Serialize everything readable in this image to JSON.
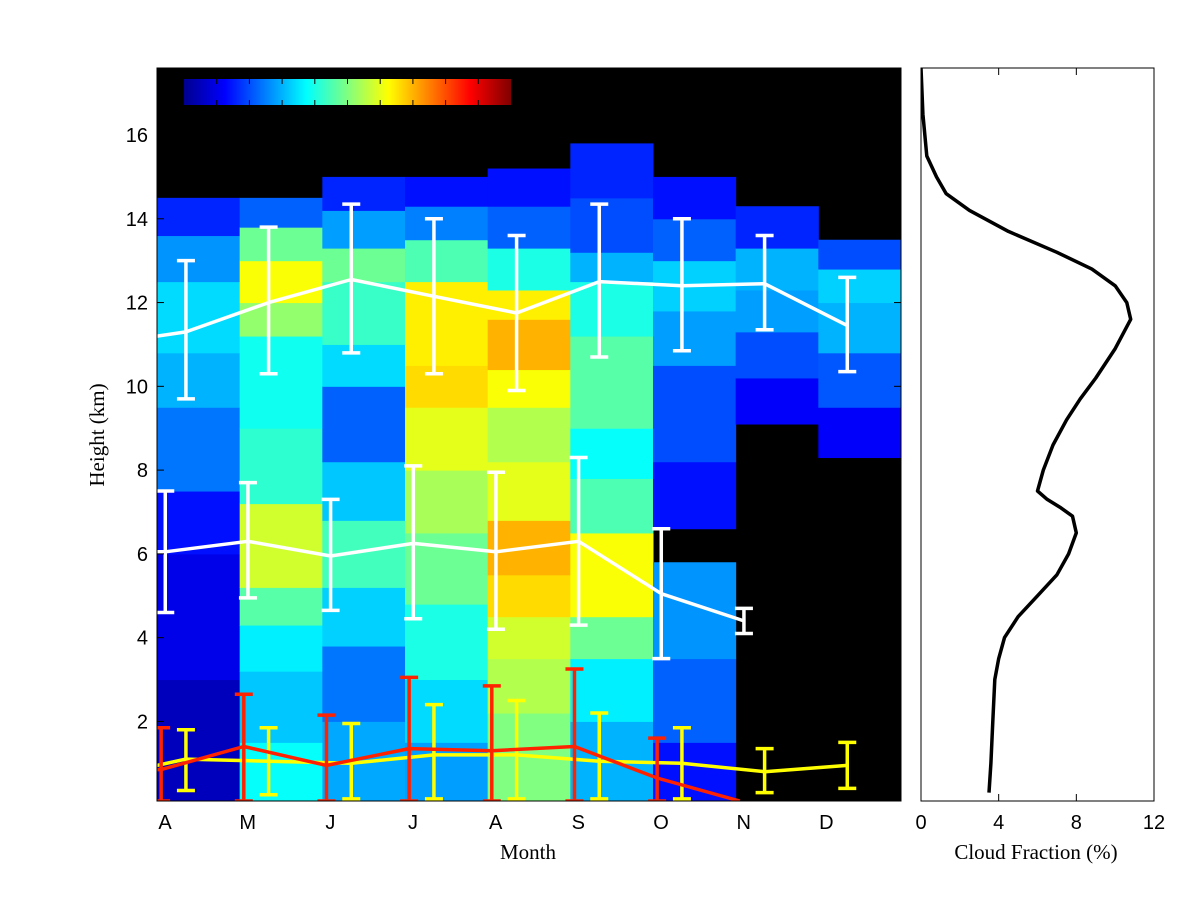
{
  "chart_data": [
    {
      "type": "heatmap",
      "title": "",
      "xlabel": "Month",
      "ylabel": "Height (km)",
      "categories": [
        "A",
        "M",
        "J",
        "J",
        "A",
        "S",
        "O",
        "N",
        "D"
      ],
      "ylim": [
        0.1,
        17.6
      ],
      "yticks": [
        2,
        4,
        6,
        8,
        10,
        12,
        14,
        16
      ],
      "colorbar": {
        "placement": "top-left inside plot",
        "colormap": "jet",
        "colors": [
          "#00008f",
          "#0000ff",
          "#0080ff",
          "#00ffff",
          "#80ff80",
          "#ffff00",
          "#ff8000",
          "#ff0000",
          "#800000"
        ]
      },
      "background_color": "#000000",
      "cloud_fraction_columns": [
        [
          [
            0.1,
            3.0,
            0.05
          ],
          [
            3.0,
            6.0,
            0.1
          ],
          [
            6.0,
            7.5,
            0.14
          ],
          [
            7.5,
            9.5,
            0.24
          ],
          [
            9.5,
            10.8,
            0.3
          ],
          [
            10.8,
            12.5,
            0.34
          ],
          [
            12.5,
            13.6,
            0.27
          ],
          [
            13.6,
            14.5,
            0.16
          ]
        ],
        [
          [
            0.1,
            1.5,
            0.38
          ],
          [
            1.5,
            3.2,
            0.32
          ],
          [
            3.2,
            4.3,
            0.36
          ],
          [
            4.3,
            5.2,
            0.46
          ],
          [
            5.2,
            7.2,
            0.58
          ],
          [
            7.2,
            9.0,
            0.42
          ],
          [
            9.0,
            11.2,
            0.39
          ],
          [
            11.2,
            12.0,
            0.52
          ],
          [
            12.0,
            13.0,
            0.62
          ],
          [
            13.0,
            13.8,
            0.48
          ],
          [
            13.8,
            14.5,
            0.22
          ]
        ],
        [
          [
            0.1,
            2.0,
            0.29
          ],
          [
            2.0,
            3.8,
            0.24
          ],
          [
            3.8,
            5.2,
            0.33
          ],
          [
            5.2,
            6.8,
            0.44
          ],
          [
            6.8,
            8.2,
            0.32
          ],
          [
            8.2,
            10.0,
            0.22
          ],
          [
            10.0,
            11.0,
            0.34
          ],
          [
            11.0,
            12.5,
            0.43
          ],
          [
            12.5,
            13.3,
            0.48
          ],
          [
            13.3,
            14.2,
            0.28
          ],
          [
            14.2,
            15.0,
            0.16
          ]
        ],
        [
          [
            0.1,
            1.5,
            0.28
          ],
          [
            1.5,
            3.0,
            0.34
          ],
          [
            3.0,
            4.8,
            0.4
          ],
          [
            4.8,
            6.5,
            0.48
          ],
          [
            6.5,
            8.0,
            0.54
          ],
          [
            8.0,
            9.5,
            0.6
          ],
          [
            9.5,
            10.5,
            0.66
          ],
          [
            10.5,
            12.5,
            0.64
          ],
          [
            12.5,
            13.5,
            0.45
          ],
          [
            13.5,
            14.3,
            0.25
          ],
          [
            14.3,
            15.0,
            0.14
          ]
        ],
        [
          [
            0.1,
            2.2,
            0.5
          ],
          [
            2.2,
            3.5,
            0.55
          ],
          [
            3.5,
            4.5,
            0.58
          ],
          [
            4.5,
            5.5,
            0.66
          ],
          [
            5.5,
            6.8,
            0.7
          ],
          [
            6.8,
            8.2,
            0.6
          ],
          [
            8.2,
            9.5,
            0.55
          ],
          [
            9.5,
            10.4,
            0.62
          ],
          [
            10.4,
            11.6,
            0.7
          ],
          [
            11.6,
            12.3,
            0.64
          ],
          [
            12.3,
            13.3,
            0.4
          ],
          [
            13.3,
            14.3,
            0.22
          ],
          [
            14.3,
            15.2,
            0.14
          ]
        ],
        [
          [
            0.1,
            2.0,
            0.3
          ],
          [
            2.0,
            3.5,
            0.36
          ],
          [
            3.5,
            4.5,
            0.48
          ],
          [
            4.5,
            6.5,
            0.62
          ],
          [
            6.5,
            7.8,
            0.45
          ],
          [
            7.8,
            9.0,
            0.38
          ],
          [
            9.0,
            11.2,
            0.46
          ],
          [
            11.2,
            12.5,
            0.4
          ],
          [
            12.5,
            13.2,
            0.3
          ],
          [
            13.2,
            14.5,
            0.2
          ],
          [
            14.5,
            15.8,
            0.16
          ]
        ],
        [
          [
            0.1,
            1.5,
            0.14
          ],
          [
            1.5,
            3.5,
            0.22
          ],
          [
            3.5,
            5.8,
            0.27
          ],
          [
            6.6,
            8.2,
            0.14
          ],
          [
            8.2,
            10.5,
            0.2
          ],
          [
            10.5,
            11.8,
            0.28
          ],
          [
            11.8,
            13.0,
            0.33
          ],
          [
            13.0,
            14.0,
            0.22
          ],
          [
            14.0,
            15.0,
            0.14
          ]
        ],
        [
          [
            9.1,
            10.2,
            0.12
          ],
          [
            10.2,
            11.3,
            0.2
          ],
          [
            11.3,
            12.3,
            0.28
          ],
          [
            12.3,
            13.3,
            0.3
          ],
          [
            13.3,
            14.3,
            0.16
          ]
        ],
        [
          [
            8.3,
            9.5,
            0.12
          ],
          [
            9.5,
            10.8,
            0.21
          ],
          [
            10.8,
            12.0,
            0.3
          ],
          [
            12.0,
            12.8,
            0.33
          ],
          [
            12.8,
            13.5,
            0.2
          ]
        ]
      ],
      "series": [
        {
          "color": "#ffffff",
          "x": [
            0,
            0.35,
            1.35,
            2.35,
            3.35,
            4.35,
            5.35,
            6.35,
            7.35,
            8.35
          ],
          "values": [
            11.2,
            11.3,
            12.0,
            12.55,
            12.15,
            11.75,
            12.5,
            12.4,
            12.45,
            11.45
          ],
          "err_low": [
            null,
            9.7,
            10.3,
            10.8,
            10.3,
            9.9,
            10.7,
            10.85,
            11.35,
            10.35
          ],
          "err_high": [
            null,
            13.0,
            13.8,
            14.35,
            14.0,
            13.6,
            14.35,
            14.0,
            13.6,
            12.6
          ]
        },
        {
          "color": "#ffffff",
          "x": [
            0,
            0.1,
            1.1,
            2.1,
            3.1,
            4.1,
            5.1,
            6.1,
            7.1
          ],
          "values": [
            6.05,
            6.05,
            6.3,
            5.95,
            6.25,
            6.05,
            6.3,
            5.05,
            4.4
          ],
          "err_low": [
            null,
            4.6,
            4.95,
            4.65,
            4.45,
            4.2,
            4.3,
            3.5,
            4.1
          ],
          "err_high": [
            null,
            7.5,
            7.7,
            7.3,
            8.1,
            7.95,
            8.3,
            6.6,
            4.7
          ]
        },
        {
          "color": "#ffff00",
          "x": [
            0,
            0.35,
            1.35,
            2.35,
            3.35,
            4.35,
            5.35,
            6.35,
            7.35,
            8.35
          ],
          "values": [
            0.95,
            1.1,
            1.05,
            1.0,
            1.2,
            1.2,
            1.05,
            1.0,
            0.8,
            0.95
          ],
          "err_low": [
            null,
            0.35,
            0.25,
            0.15,
            0.15,
            0.15,
            0.15,
            0.15,
            0.3,
            0.4
          ],
          "err_high": [
            null,
            1.8,
            1.85,
            1.95,
            2.4,
            2.5,
            2.2,
            1.85,
            1.35,
            1.5
          ]
        },
        {
          "color": "#ff2200",
          "x": [
            0,
            0.05,
            1.05,
            2.05,
            3.05,
            4.05,
            5.05,
            6.05,
            7.05
          ],
          "values": [
            0.85,
            0.85,
            1.4,
            0.95,
            1.35,
            1.3,
            1.4,
            0.65,
            0.1
          ],
          "err_low": [
            null,
            0.1,
            0.1,
            0.1,
            0.1,
            0.1,
            0.1,
            0.1,
            null
          ],
          "err_high": [
            null,
            1.85,
            2.65,
            2.15,
            3.05,
            2.85,
            3.25,
            1.6,
            null
          ]
        }
      ]
    },
    {
      "type": "line",
      "title": "",
      "xlabel": "Cloud Fraction (%)",
      "ylabel": "",
      "xlim": [
        0,
        12
      ],
      "xticks": [
        0,
        4,
        8,
        12
      ],
      "ylim": [
        0.1,
        17.6
      ],
      "series": [
        {
          "color": "#000000",
          "x": [
            3.5,
            3.6,
            3.7,
            3.8,
            4.0,
            4.3,
            5.0,
            6.0,
            7.0,
            7.6,
            8.0,
            7.8,
            7.2,
            6.5,
            6.0,
            6.3,
            6.8,
            7.5,
            8.2,
            9.0,
            10.0,
            10.8,
            10.6,
            10.0,
            8.8,
            7.0,
            4.5,
            2.5,
            1.3,
            0.8,
            0.3,
            0.1,
            0.0
          ],
          "y": [
            0.3,
            1.0,
            2.0,
            3.0,
            3.5,
            4.0,
            4.5,
            5.0,
            5.5,
            6.0,
            6.5,
            6.9,
            7.1,
            7.3,
            7.5,
            8.0,
            8.6,
            9.2,
            9.7,
            10.2,
            10.9,
            11.6,
            12.0,
            12.4,
            12.8,
            13.2,
            13.7,
            14.2,
            14.6,
            15.0,
            15.5,
            16.5,
            17.6
          ]
        }
      ]
    }
  ]
}
